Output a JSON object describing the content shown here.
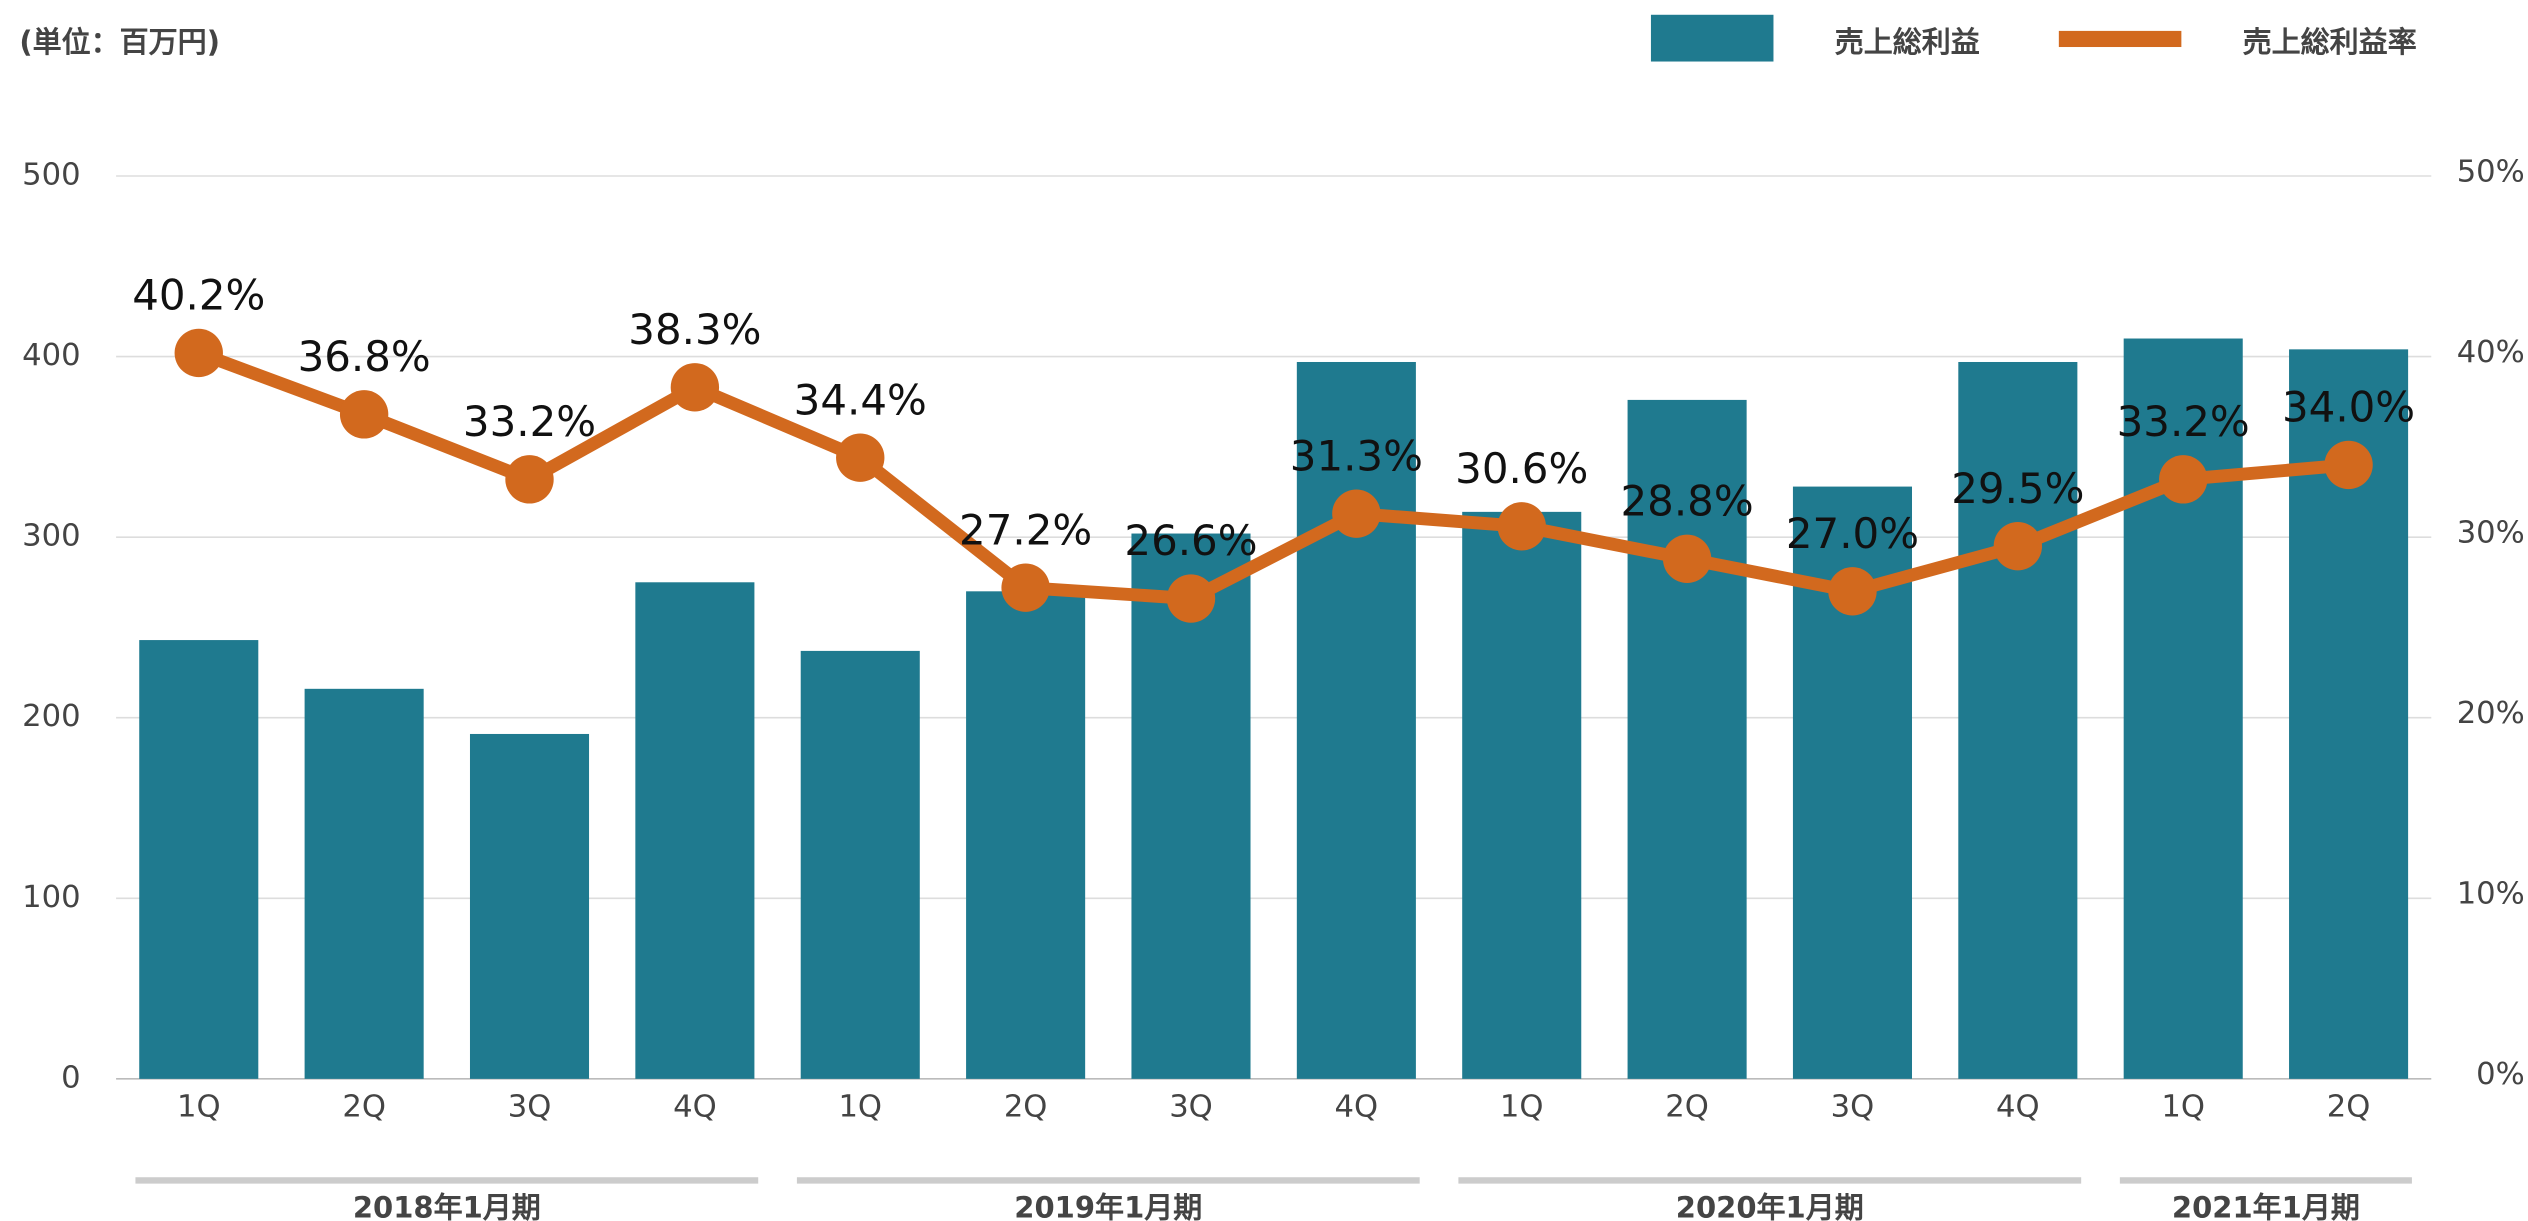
{
  "chart_data": {
    "type": "bar",
    "unit": "(単位：百万円)",
    "groups": [
      {
        "name": "2018年1月期",
        "categories": [
          "1Q",
          "2Q",
          "3Q",
          "4Q"
        ]
      },
      {
        "name": "2019年1月期",
        "categories": [
          "1Q",
          "2Q",
          "3Q",
          "4Q"
        ]
      },
      {
        "name": "2020年1月期",
        "categories": [
          "1Q",
          "2Q",
          "3Q",
          "4Q"
        ]
      },
      {
        "name": "2021年1月期",
        "categories": [
          "1Q",
          "2Q"
        ]
      }
    ],
    "series": [
      {
        "name": "売上総利益",
        "type": "bar",
        "color": "#1f7a8f",
        "values": [
          243,
          216,
          191,
          275,
          237,
          270,
          302,
          397,
          314,
          376,
          328,
          397,
          410,
          404
        ]
      },
      {
        "name": "売上総利益率",
        "type": "line",
        "axis": "y2",
        "color": "#d2691e",
        "values": [
          40.2,
          36.8,
          33.2,
          38.3,
          34.4,
          27.2,
          26.6,
          31.3,
          30.6,
          28.8,
          27.0,
          29.5,
          33.2,
          34.0
        ],
        "value_labels": [
          "40.2%",
          "36.8%",
          "33.2%",
          "38.3%",
          "34.4%",
          "27.2%",
          "26.6%",
          "31.3%",
          "30.6%",
          "28.8%",
          "27.0%",
          "29.5%",
          "33.2%",
          "34.0%"
        ]
      }
    ],
    "ylim": [
      0,
      500
    ],
    "yticks": [
      0,
      100,
      200,
      300,
      400,
      500
    ],
    "y2lim": [
      0,
      50
    ],
    "y2ticks": [
      {
        "value": 0,
        "label": "0%"
      },
      {
        "value": 10,
        "label": "10%"
      },
      {
        "value": 20,
        "label": "20%"
      },
      {
        "value": 30,
        "label": "30%"
      },
      {
        "value": 40,
        "label": "40%"
      },
      {
        "value": 50,
        "label": "50%"
      }
    ],
    "grid": true,
    "legend": "top-right"
  }
}
